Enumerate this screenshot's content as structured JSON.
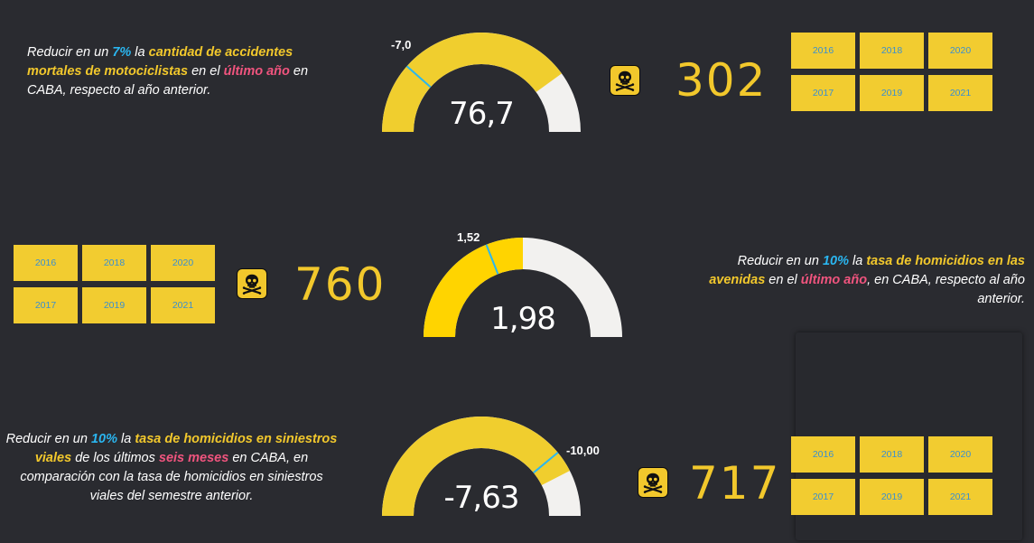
{
  "kpis": [
    {
      "desc": [
        {
          "t": "Reducir en un ",
          "c": ""
        },
        {
          "t": "7%",
          "c": "hl-blue"
        },
        {
          "t": " la ",
          "c": ""
        },
        {
          "t": "cantidad de accidentes mortales de motociclistas",
          "c": "hl-yellow"
        },
        {
          "t": " en el ",
          "c": ""
        },
        {
          "t": "último año",
          "c": "hl-pink"
        },
        {
          "t": "  en CABA, respecto al año anterior.",
          "c": ""
        }
      ],
      "gauge": {
        "value_label": "76,7",
        "target_label": "-7,0",
        "fill_fraction": 0.8,
        "target_fraction": 0.23,
        "fill_color": "#f0ce2e",
        "track_color": "#f2f1ef",
        "marker_color": "#2ab6f0"
      },
      "count": "302",
      "years": [
        "2016",
        "2018",
        "2020",
        "2017",
        "2019",
        "2021"
      ]
    },
    {
      "desc": [
        {
          "t": "Reducir en un ",
          "c": ""
        },
        {
          "t": "10%",
          "c": "hl-blue"
        },
        {
          "t": " la  ",
          "c": ""
        },
        {
          "t": "tasa de homicidios  en las avenidas",
          "c": "hl-yellow"
        },
        {
          "t": " en el ",
          "c": ""
        },
        {
          "t": "último año",
          "c": "hl-pink"
        },
        {
          "t": ", en CABA, respecto al año anterior.",
          "c": ""
        }
      ],
      "gauge": {
        "value_label": "1,98",
        "target_label": "1,52",
        "fill_fraction": 0.5,
        "target_fraction": 0.38,
        "fill_color": "#ffd400",
        "track_color": "#f2f1ef",
        "marker_color": "#2ab6f0"
      },
      "count": "760",
      "years": [
        "2016",
        "2018",
        "2020",
        "2017",
        "2019",
        "2021"
      ]
    },
    {
      "desc": [
        {
          "t": "Reducir en un ",
          "c": ""
        },
        {
          "t": "10%",
          "c": "hl-blue"
        },
        {
          "t": " la ",
          "c": ""
        },
        {
          "t": "tasa de homicidios en siniestros viales",
          "c": "hl-yellow"
        },
        {
          "t": " de los últimos ",
          "c": ""
        },
        {
          "t": "seis meses",
          "c": "hl-pink"
        },
        {
          "t": "  en CABA, en comparación con la tasa de homicidios en siniestros viales del semestre anterior.",
          "c": ""
        }
      ],
      "gauge": {
        "value_label": "-7,63",
        "target_label": "-10,00",
        "fill_fraction": 0.85,
        "target_fraction": 0.78,
        "fill_color": "#f0ce2e",
        "track_color": "#f2f1ef",
        "marker_color": "#2ab6f0"
      },
      "count": "717",
      "years": [
        "2016",
        "2018",
        "2020",
        "2017",
        "2019",
        "2021"
      ]
    }
  ],
  "icon": "skull-crossbones-icon"
}
